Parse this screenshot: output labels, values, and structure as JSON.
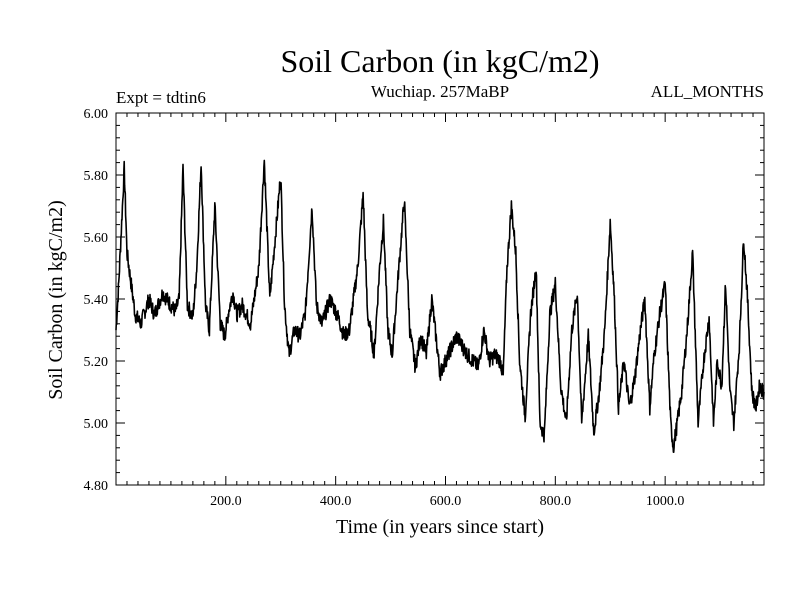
{
  "chart_data": {
    "type": "line",
    "title": "Soil Carbon (in kgC/m2)",
    "subtitle": "Wuchiap. 257MaBP",
    "left_note": "Expt = tdtin6",
    "right_note": "ALL_MONTHS",
    "xlabel": "Time (in years since start)",
    "ylabel": "Soil Carbon (in kgC/m2)",
    "xlim": [
      0,
      1180
    ],
    "ylim": [
      4.8,
      6.0
    ],
    "x_ticks": [
      200,
      400,
      600,
      800,
      1000
    ],
    "x_tick_labels": [
      "200.0",
      "400.0",
      "600.0",
      "800.0",
      "1000.0"
    ],
    "y_ticks": [
      4.8,
      5.0,
      5.2,
      5.4,
      5.6,
      5.8,
      6.0
    ],
    "y_tick_labels": [
      "4.80",
      "5.00",
      "5.20",
      "5.40",
      "5.60",
      "5.80",
      "6.00"
    ],
    "grid": false,
    "series": [
      {
        "name": "Soil Carbon",
        "color": "#000000",
        "x": [
          0,
          5,
          15,
          20,
          35,
          45,
          60,
          70,
          85,
          100,
          108,
          115,
          122,
          130,
          140,
          147,
          155,
          163,
          170,
          180,
          190,
          198,
          205,
          213,
          220,
          230,
          245,
          260,
          270,
          280,
          290,
          300,
          307,
          315,
          325,
          335,
          345,
          357,
          365,
          375,
          390,
          405,
          415,
          425,
          440,
          450,
          458,
          465,
          470,
          480,
          487,
          495,
          503,
          515,
          525,
          535,
          545,
          555,
          565,
          575,
          590,
          605,
          620,
          640,
          660,
          670,
          680,
          690,
          700,
          705,
          712,
          720,
          728,
          735,
          745,
          755,
          765,
          772,
          780,
          790,
          800,
          810,
          820,
          830,
          840,
          848,
          860,
          870,
          880,
          890,
          900,
          907,
          915,
          925,
          935,
          945,
          955,
          963,
          972,
          980,
          990,
          1000,
          1010,
          1015,
          1022,
          1030,
          1040,
          1050,
          1060,
          1070,
          1080,
          1088,
          1095,
          1103,
          1110,
          1118,
          1125,
          1135,
          1143,
          1150,
          1158,
          1165,
          1172,
          1180
        ],
        "y": [
          5.3,
          5.45,
          5.82,
          5.55,
          5.35,
          5.32,
          5.4,
          5.35,
          5.42,
          5.38,
          5.36,
          5.4,
          5.82,
          5.38,
          5.34,
          5.5,
          5.84,
          5.38,
          5.3,
          5.7,
          5.32,
          5.28,
          5.36,
          5.42,
          5.35,
          5.38,
          5.32,
          5.5,
          5.85,
          5.4,
          5.6,
          5.8,
          5.38,
          5.22,
          5.3,
          5.28,
          5.36,
          5.7,
          5.38,
          5.32,
          5.4,
          5.34,
          5.28,
          5.3,
          5.5,
          5.74,
          5.35,
          5.28,
          5.22,
          5.5,
          5.65,
          5.3,
          5.22,
          5.5,
          5.72,
          5.3,
          5.18,
          5.28,
          5.22,
          5.4,
          5.16,
          5.22,
          5.28,
          5.22,
          5.18,
          5.3,
          5.2,
          5.22,
          5.2,
          5.15,
          5.5,
          5.7,
          5.55,
          5.2,
          5.02,
          5.35,
          5.5,
          5.0,
          4.96,
          5.35,
          5.45,
          5.12,
          5.0,
          5.3,
          5.42,
          5.0,
          5.28,
          4.97,
          5.1,
          5.3,
          5.65,
          5.42,
          5.05,
          5.2,
          5.05,
          5.15,
          5.3,
          5.4,
          5.05,
          5.22,
          5.35,
          5.45,
          5.0,
          4.92,
          5.0,
          5.1,
          5.3,
          5.55,
          5.0,
          5.2,
          5.34,
          5.0,
          5.2,
          5.12,
          5.45,
          5.1,
          5.0,
          5.25,
          5.6,
          5.4,
          5.1,
          5.05,
          5.12,
          5.1
        ]
      }
    ]
  }
}
